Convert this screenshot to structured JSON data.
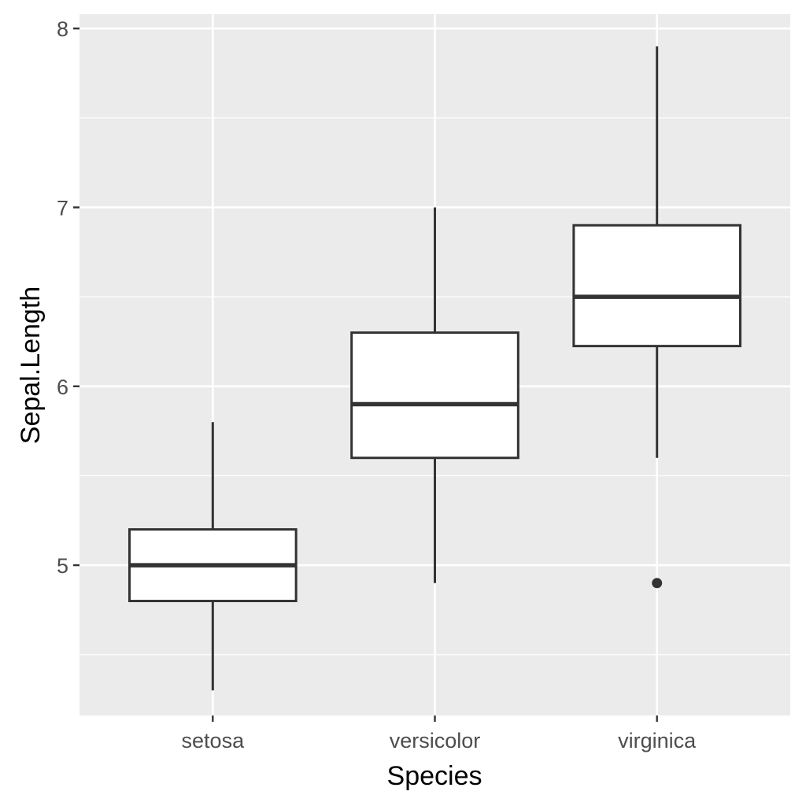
{
  "chart_data": {
    "type": "boxplot",
    "xlabel": "Species",
    "ylabel": "Sepal.Length",
    "categories": [
      "setosa",
      "versicolor",
      "virginica"
    ],
    "ylim": [
      4.16,
      8.08
    ],
    "y_major_ticks": [
      5,
      6,
      7,
      8
    ],
    "y_tick_labels": [
      "5",
      "6",
      "7",
      "8"
    ],
    "y_minor_ticks": [
      4.5,
      5.5,
      6.5,
      7.5
    ],
    "grid": true,
    "boxes": [
      {
        "category": "setosa",
        "min": 4.3,
        "q1": 4.8,
        "median": 5.0,
        "q3": 5.2,
        "max": 5.8,
        "outliers": []
      },
      {
        "category": "versicolor",
        "min": 4.9,
        "q1": 5.6,
        "median": 5.9,
        "q3": 6.3,
        "max": 7.0,
        "outliers": []
      },
      {
        "category": "virginica",
        "min": 5.6,
        "q1": 6.225,
        "median": 6.5,
        "q3": 6.9,
        "max": 7.9,
        "outliers": [
          4.9
        ]
      }
    ],
    "colors": {
      "panel": "#ebebeb",
      "grid": "#ffffff",
      "box_fill": "#ffffff",
      "line": "#333333"
    }
  }
}
